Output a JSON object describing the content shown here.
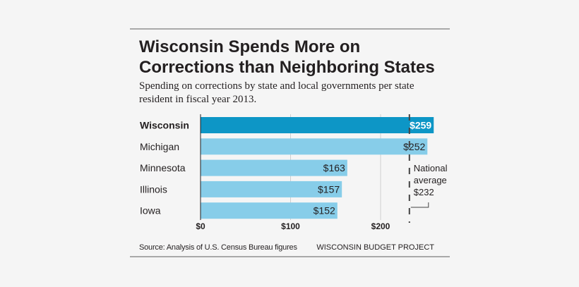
{
  "title": "Wisconsin Spends More on Corrections than Neighboring States",
  "subtitle": "Spending on corrections by state and local governments per state resident in fiscal year 2013.",
  "source": "Source: Analysis of U.S. Census Bureau figures",
  "credit": "WISCONSIN BUDGET PROJECT",
  "chart_data": {
    "type": "bar",
    "orientation": "horizontal",
    "categories": [
      "Wisconsin",
      "Michigan",
      "Minnesota",
      "Illinois",
      "Iowa"
    ],
    "values": [
      259,
      252,
      163,
      157,
      152
    ],
    "value_labels": [
      "$259",
      "$252",
      "$163",
      "$157",
      "$152"
    ],
    "highlight": "Wisconsin",
    "xlim": [
      0,
      259
    ],
    "xticks": [
      0,
      100,
      200
    ],
    "xtick_labels": [
      "$0",
      "$100",
      "$200"
    ],
    "reference_line": {
      "value": 232,
      "label_lines": [
        "National",
        "average",
        "$232"
      ]
    },
    "colors": {
      "highlight": "#0d96c6",
      "bar": "#87cde9",
      "reference": "#444444"
    }
  }
}
